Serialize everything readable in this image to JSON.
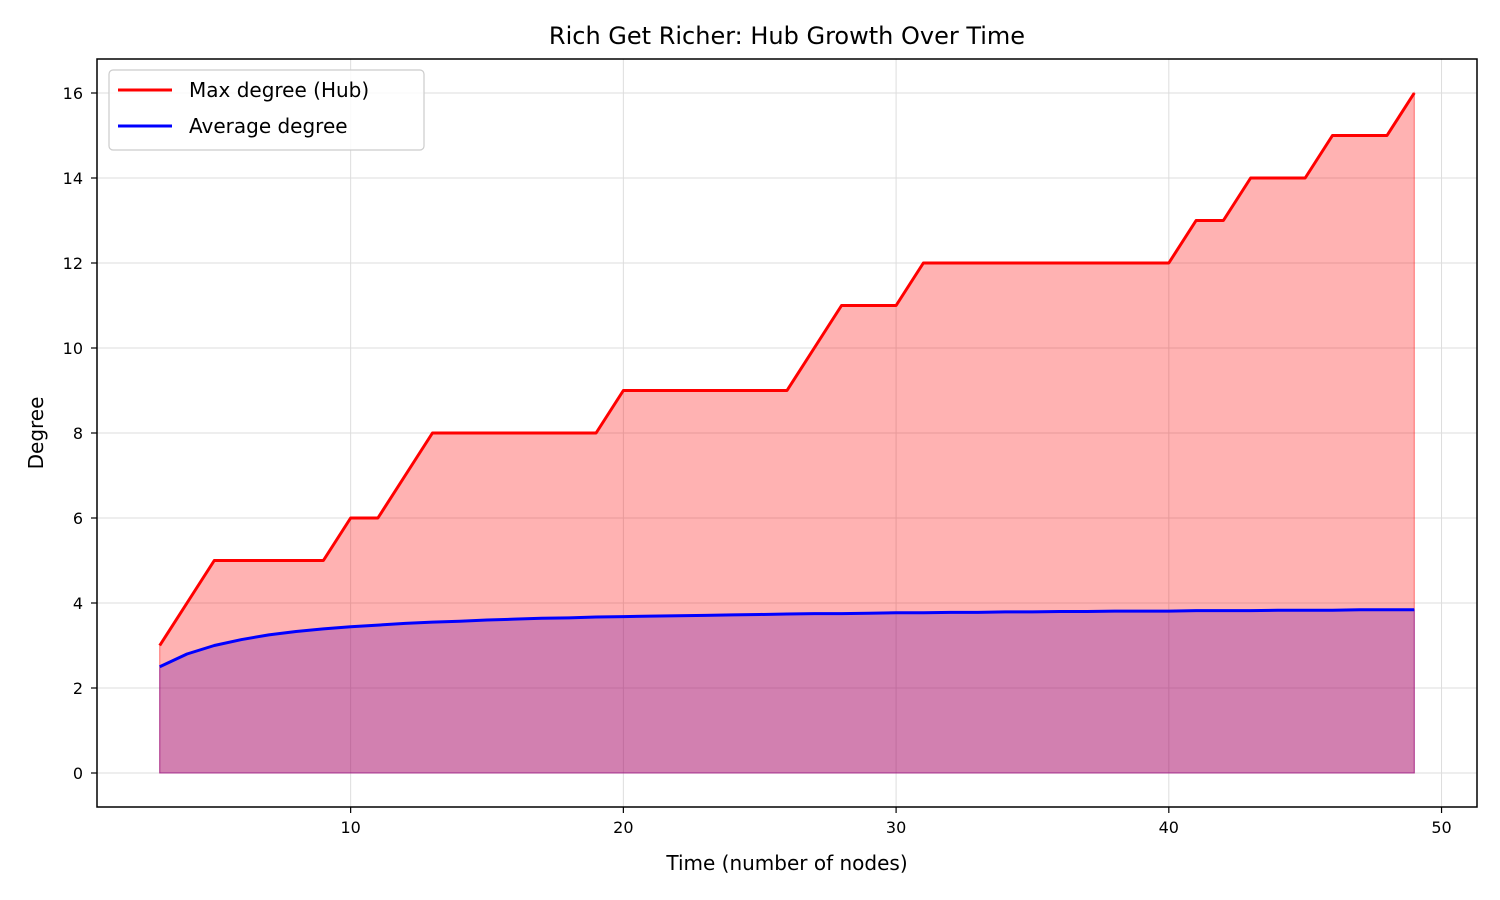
{
  "chart_data": {
    "type": "line",
    "title": "Rich Get Richer: Hub Growth Over Time",
    "xlabel": "Time (number of nodes)",
    "ylabel": "Degree",
    "xlim": [
      0.7,
      51.3
    ],
    "ylim": [
      -0.8,
      16.8
    ],
    "xticks": [
      10,
      20,
      30,
      40,
      50
    ],
    "yticks": [
      0,
      2,
      4,
      6,
      8,
      10,
      12,
      14,
      16
    ],
    "grid": true,
    "legend_position": "top-left",
    "x": [
      3,
      4,
      5,
      6,
      7,
      8,
      9,
      10,
      11,
      12,
      13,
      14,
      15,
      16,
      17,
      18,
      19,
      20,
      21,
      22,
      23,
      24,
      25,
      26,
      27,
      28,
      29,
      30,
      31,
      32,
      33,
      34,
      35,
      36,
      37,
      38,
      39,
      40,
      41,
      42,
      43,
      44,
      45,
      46,
      47,
      48,
      49
    ],
    "series": [
      {
        "name": "Max degree (Hub)",
        "color": "#ff0000",
        "fill_color": "#ff0000",
        "values": [
          3,
          4,
          5,
          5,
          5,
          5,
          5,
          6,
          6,
          7,
          8,
          8,
          8,
          8,
          8,
          8,
          8,
          9,
          9,
          9,
          9,
          9,
          9,
          9,
          10,
          11,
          11,
          11,
          12,
          12,
          12,
          12,
          12,
          12,
          12,
          12,
          12,
          12,
          13,
          13,
          14,
          14,
          14,
          15,
          15,
          15,
          16
        ]
      },
      {
        "name": "Average degree",
        "color": "#0000ff",
        "fill_color": "#6a0dad",
        "values": [
          2.5,
          2.8,
          3.0,
          3.14,
          3.25,
          3.33,
          3.39,
          3.44,
          3.48,
          3.52,
          3.55,
          3.57,
          3.6,
          3.62,
          3.64,
          3.65,
          3.67,
          3.68,
          3.69,
          3.7,
          3.71,
          3.72,
          3.73,
          3.74,
          3.75,
          3.75,
          3.76,
          3.77,
          3.77,
          3.78,
          3.78,
          3.79,
          3.79,
          3.8,
          3.8,
          3.81,
          3.81,
          3.81,
          3.82,
          3.82,
          3.82,
          3.83,
          3.83,
          3.83,
          3.84,
          3.84,
          3.84
        ]
      }
    ]
  }
}
